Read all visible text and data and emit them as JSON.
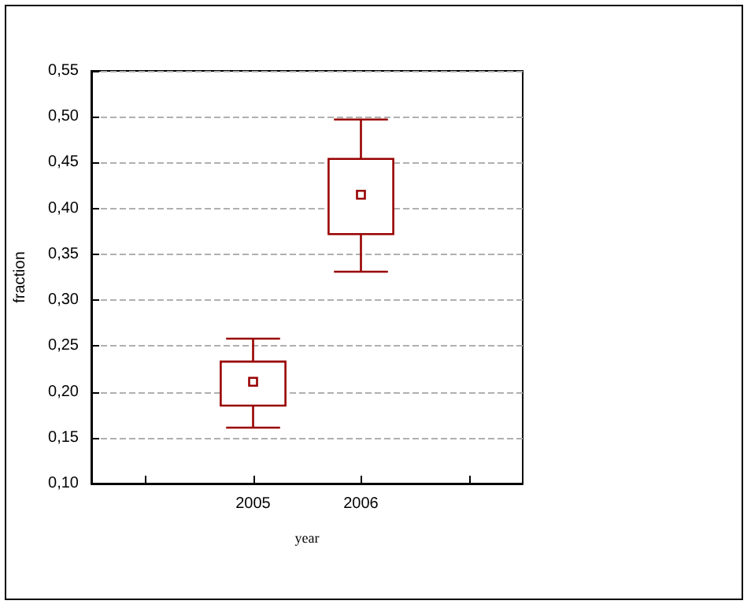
{
  "chart_data": {
    "type": "box",
    "xlabel": "year",
    "ylabel": "fraction",
    "categories": [
      null,
      "2005",
      "2006",
      null
    ],
    "series": [
      {
        "color": "#990000",
        "marker": "square",
        "boxes": [
          null,
          {
            "low": 0.161,
            "q1": 0.185,
            "median": 0.211,
            "q3": 0.233,
            "high": 0.258
          },
          {
            "low": 0.331,
            "q1": 0.372,
            "median": 0.415,
            "q3": 0.454,
            "high": 0.497
          },
          null
        ]
      }
    ],
    "ylim": [
      0.1,
      0.55
    ],
    "yticks": [
      {
        "value": 0.1,
        "label": "0,10"
      },
      {
        "value": 0.15,
        "label": "0,15"
      },
      {
        "value": 0.2,
        "label": "0,20"
      },
      {
        "value": 0.25,
        "label": "0,25"
      },
      {
        "value": 0.3,
        "label": "0,30"
      },
      {
        "value": 0.35,
        "label": "0,35"
      },
      {
        "value": 0.4,
        "label": "0,40"
      },
      {
        "value": 0.45,
        "label": "0,45"
      },
      {
        "value": 0.5,
        "label": "0,50"
      },
      {
        "value": 0.55,
        "label": "0,55"
      }
    ],
    "grid": "y"
  }
}
